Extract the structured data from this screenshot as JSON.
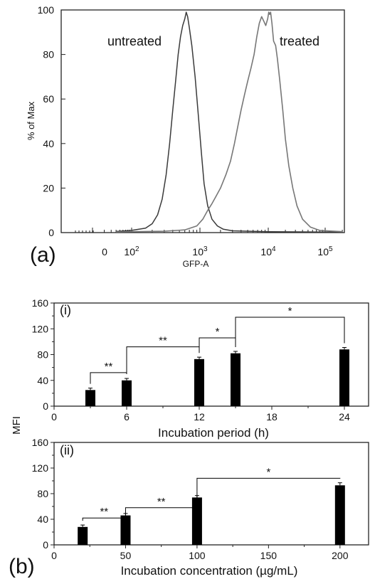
{
  "chart_data": [
    {
      "type": "line",
      "panel_label": "(a)",
      "xlabel": "GFP-A",
      "ylabel": "% of Max",
      "xscale": "log",
      "ylim": [
        0,
        100
      ],
      "y_ticks": [
        "0",
        "20",
        "40",
        "60",
        "80",
        "100"
      ],
      "x_ticks": [
        {
          "base": "0",
          "exp": ""
        },
        {
          "base": "10",
          "exp": "2"
        },
        {
          "base": "10",
          "exp": "3"
        },
        {
          "base": "10",
          "exp": "4"
        },
        {
          "base": "10",
          "exp": "5"
        }
      ],
      "grid": false,
      "series": [
        {
          "name": "untreated",
          "color": "#3a3a3a",
          "points": [
            [
              40,
              0.5
            ],
            [
              100,
              1
            ],
            [
              160,
              2
            ],
            [
              200,
              4
            ],
            [
              240,
              8
            ],
            [
              280,
              15
            ],
            [
              320,
              26
            ],
            [
              360,
              40
            ],
            [
              400,
              55
            ],
            [
              440,
              68
            ],
            [
              480,
              80
            ],
            [
              520,
              88
            ],
            [
              560,
              93
            ],
            [
              600,
              96
            ],
            [
              630,
              99
            ],
            [
              660,
              97
            ],
            [
              700,
              92
            ],
            [
              760,
              84
            ],
            [
              850,
              70
            ],
            [
              950,
              52
            ],
            [
              1050,
              36
            ],
            [
              1150,
              22
            ],
            [
              1300,
              12
            ],
            [
              1500,
              6
            ],
            [
              1800,
              3
            ],
            [
              2200,
              1.5
            ],
            [
              3000,
              0.8
            ],
            [
              10000,
              0.4
            ],
            [
              200000,
              0.2
            ]
          ]
        },
        {
          "name": "treated",
          "color": "#777777",
          "points": [
            [
              40,
              0.3
            ],
            [
              300,
              0.6
            ],
            [
              600,
              1.2
            ],
            [
              900,
              3
            ],
            [
              1100,
              6
            ],
            [
              1300,
              10
            ],
            [
              1500,
              13
            ],
            [
              1700,
              16
            ],
            [
              2000,
              20
            ],
            [
              2400,
              26
            ],
            [
              2800,
              32
            ],
            [
              3200,
              40
            ],
            [
              3600,
              48
            ],
            [
              4000,
              55
            ],
            [
              4500,
              62
            ],
            [
              5000,
              68
            ],
            [
              5600,
              74
            ],
            [
              6200,
              80
            ],
            [
              6800,
              88
            ],
            [
              7400,
              94
            ],
            [
              8000,
              97
            ],
            [
              8600,
              95
            ],
            [
              9200,
              93
            ],
            [
              9800,
              96
            ],
            [
              10200,
              99
            ],
            [
              10600,
              98
            ],
            [
              11000,
              99
            ],
            [
              11600,
              94
            ],
            [
              12400,
              86
            ],
            [
              13500,
              84
            ],
            [
              14500,
              78
            ],
            [
              16000,
              68
            ],
            [
              18000,
              55
            ],
            [
              20000,
              42
            ],
            [
              23000,
              30
            ],
            [
              27000,
              20
            ],
            [
              32000,
              12
            ],
            [
              40000,
              6
            ],
            [
              55000,
              2.5
            ],
            [
              80000,
              1
            ],
            [
              200000,
              0.4
            ]
          ]
        }
      ]
    },
    {
      "type": "bar",
      "panel_label": "(i)",
      "xlabel": "Incubation period (h)",
      "ylabel": "MFI",
      "xlim": [
        0,
        26
      ],
      "ylim": [
        0,
        160
      ],
      "x_ticks": [
        0,
        6,
        12,
        18,
        24
      ],
      "y_ticks": [
        0,
        40,
        80,
        120,
        160
      ],
      "x": [
        3,
        6,
        12,
        15,
        24
      ],
      "values": [
        25,
        40,
        73,
        82,
        88
      ],
      "errors": [
        3,
        3,
        3,
        3,
        3
      ],
      "significance": [
        {
          "from": 3,
          "to": 6,
          "label": "**"
        },
        {
          "from": 6,
          "to": 12,
          "label": "**"
        },
        {
          "from": 12,
          "to": 15,
          "label": "*"
        },
        {
          "from": 15,
          "to": 24,
          "label": "*"
        }
      ]
    },
    {
      "type": "bar",
      "panel_label": "(ii)",
      "figure_label": "(b)",
      "xlabel": "Incubation concentration (µg/mL)",
      "ylabel": "",
      "xlim": [
        0,
        220
      ],
      "ylim": [
        0,
        160
      ],
      "x_ticks": [
        0,
        50,
        100,
        150,
        200
      ],
      "y_ticks": [
        0,
        40,
        80,
        120,
        160
      ],
      "x": [
        20,
        50,
        100,
        200
      ],
      "values": [
        28,
        46,
        74,
        93
      ],
      "errors": [
        3,
        3,
        3,
        4
      ],
      "significance": [
        {
          "from": 20,
          "to": 50,
          "label": "**"
        },
        {
          "from": 50,
          "to": 100,
          "label": "**"
        },
        {
          "from": 100,
          "to": 200,
          "label": "*"
        }
      ]
    }
  ]
}
